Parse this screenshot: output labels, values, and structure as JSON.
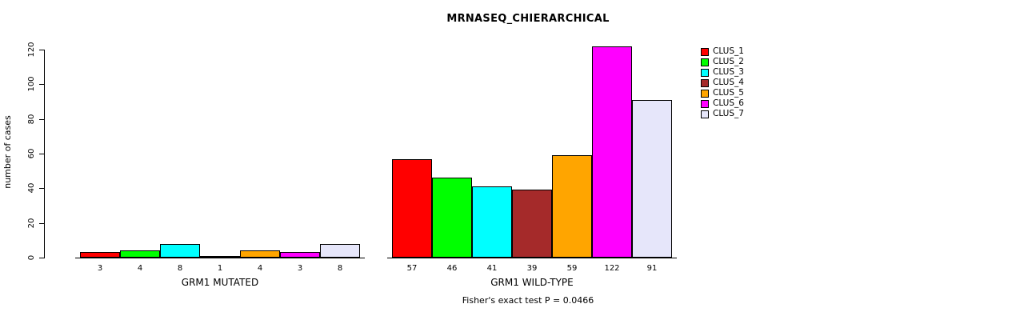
{
  "chart_data": {
    "type": "bar",
    "title": "MRNASEQ_CHIERARCHICAL",
    "ylabel": "number of cases",
    "ylim": [
      0,
      120
    ],
    "yticks": [
      0,
      20,
      40,
      60,
      80,
      100,
      120
    ],
    "grid": false,
    "legend_position": "right",
    "series": [
      {
        "name": "CLUS_1",
        "color": "#FF0000"
      },
      {
        "name": "CLUS_2",
        "color": "#00FF00"
      },
      {
        "name": "CLUS_3",
        "color": "#00FFFF"
      },
      {
        "name": "CLUS_4",
        "color": "#A52A2A"
      },
      {
        "name": "CLUS_5",
        "color": "#FFA500"
      },
      {
        "name": "CLUS_6",
        "color": "#FF00FF"
      },
      {
        "name": "CLUS_7",
        "color": "#E6E6FA"
      }
    ],
    "groups": [
      {
        "label": "GRM1 MUTATED",
        "values": [
          3,
          4,
          8,
          1,
          4,
          3,
          8
        ]
      },
      {
        "label": "GRM1 WILD-TYPE",
        "values": [
          57,
          46,
          41,
          39,
          59,
          122,
          91
        ]
      }
    ],
    "footnote": "Fisher's exact test P = 0.0466"
  }
}
